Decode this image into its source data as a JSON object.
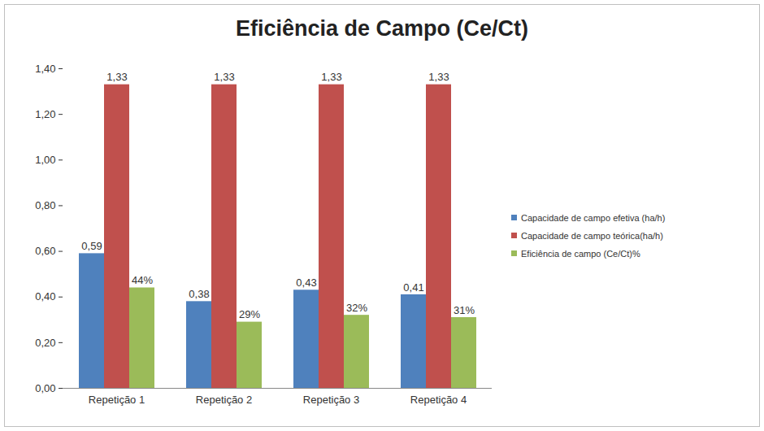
{
  "chart_data": {
    "type": "bar",
    "title": "Eficiência de Campo (Ce/Ct)",
    "categories": [
      "Repetição 1",
      "Repetição 2",
      "Repetição 3",
      "Repetição 4"
    ],
    "series": [
      {
        "name": "Capacidade de campo efetiva (ha/h)",
        "color": "#4f81bd",
        "values": [
          0.59,
          0.38,
          0.43,
          0.41
        ],
        "value_labels": [
          "0,59",
          "0,38",
          "0,43",
          "0,41"
        ]
      },
      {
        "name": "Capacidade de campo teórica(ha/h)",
        "color": "#c0504d",
        "values": [
          1.33,
          1.33,
          1.33,
          1.33
        ],
        "value_labels": [
          "1,33",
          "1,33",
          "1,33",
          "1,33"
        ]
      },
      {
        "name": "Eficiência de campo (Ce/Ct)%",
        "color": "#9bbb59",
        "values": [
          0.44,
          0.29,
          0.32,
          0.31
        ],
        "value_labels": [
          "44%",
          "29%",
          "32%",
          "31%"
        ]
      }
    ],
    "ylim": [
      0,
      1.4
    ],
    "yticks": [
      {
        "value": 0,
        "label": "0,00"
      },
      {
        "value": 0.2,
        "label": "0,20"
      },
      {
        "value": 0.4,
        "label": "0,40"
      },
      {
        "value": 0.6,
        "label": "0,60"
      },
      {
        "value": 0.8,
        "label": "0,80"
      },
      {
        "value": 1.0,
        "label": "1,00"
      },
      {
        "value": 1.2,
        "label": "1,20"
      },
      {
        "value": 1.4,
        "label": "1,40"
      }
    ],
    "grid": false,
    "data_labels": true,
    "legend": "right"
  }
}
